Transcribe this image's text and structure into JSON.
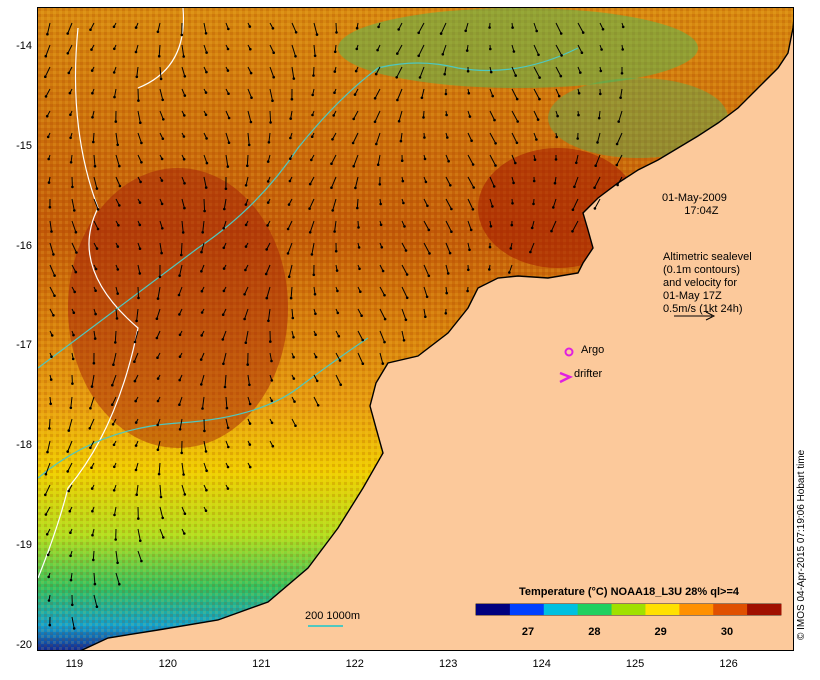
{
  "map": {
    "lat_labels": [
      "-14",
      "-15",
      "-16",
      "-17",
      "-18",
      "-19",
      "-20"
    ],
    "lat_values": [
      -14,
      -15,
      -16,
      -17,
      -18,
      -19,
      -20
    ],
    "lon_labels": [
      "119",
      "120",
      "121",
      "122",
      "123",
      "124",
      "125",
      "126"
    ],
    "lon_values": [
      119,
      120,
      121,
      122,
      123,
      124,
      125,
      126
    ],
    "extent": {
      "lon_min": 118.6,
      "lon_max": 126.7,
      "lat_min": -20.05,
      "lat_max": -13.6
    },
    "colors": {
      "land": "#fcc99b",
      "coast": "#000000",
      "sealevel_contour": "#ffffff",
      "isobath": "#4fc8c0"
    }
  },
  "date_label": {
    "line1": "01-May-2009",
    "line2": "17:04Z"
  },
  "velocity_legend": {
    "lines": [
      "Altimetric sealevel",
      "(0.1m contours)",
      "and velocity for",
      "01-May 17Z",
      "0.5m/s (1kt 24h)"
    ]
  },
  "legend": {
    "argo_label": "Argo",
    "argo_color": "#e020e0",
    "drifter_label": "drifter",
    "drifter_color": "#e020e0"
  },
  "isobath_label": "200  1000m",
  "colorbar": {
    "title": "Temperature (°C) NOAA18_L3U 28% ql>=4",
    "ticks": [
      "27",
      "28",
      "29",
      "30"
    ],
    "tick_values": [
      27,
      28,
      29,
      30
    ],
    "range": [
      26.2,
      30.8
    ],
    "colors": [
      "#00007f",
      "#0040ff",
      "#00c0e0",
      "#20d060",
      "#a0e000",
      "#ffe000",
      "#ff9000",
      "#e05000",
      "#a01000"
    ]
  },
  "credit": "© IMOS 04-Apr-2015 07:19:06 Hobart time"
}
